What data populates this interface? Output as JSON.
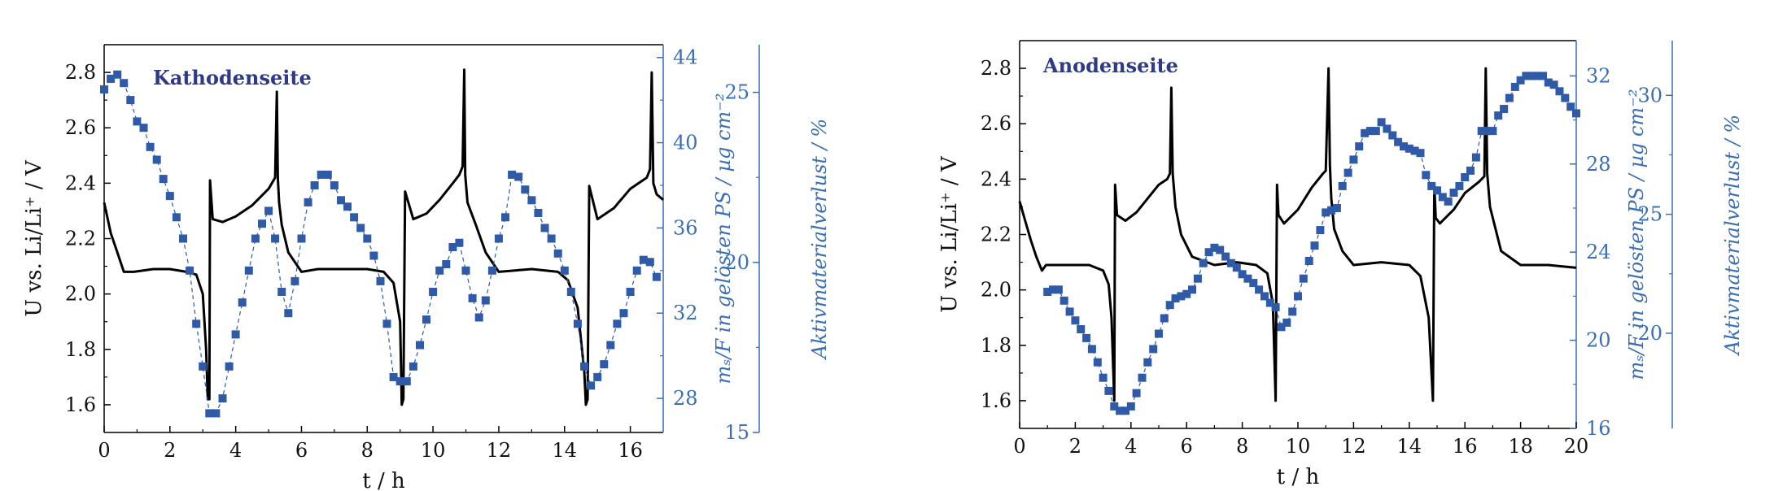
{
  "chart_data": [
    {
      "type": "line",
      "title": "Kathodenseite",
      "xlabel": "t / h",
      "ylabel": "U vs. Li/Li⁺ / V",
      "y2label": "mₛ/F in gelösten PS  / µg cm⁻²",
      "y3label": "Aktivmaterialverlust  / %",
      "xlim": [
        0,
        17
      ],
      "ylim": [
        1.5,
        2.9
      ],
      "y2lim": [
        26.4,
        44.6
      ],
      "y3lim": [
        15,
        26.4
      ],
      "x_ticks": [
        0,
        2,
        4,
        6,
        8,
        10,
        12,
        14,
        16
      ],
      "y_ticks": [
        1.6,
        1.8,
        2.0,
        2.2,
        2.4,
        2.6,
        2.8
      ],
      "y2_ticks": [
        28,
        32,
        36,
        40,
        44
      ],
      "y3_ticks": [
        15,
        20,
        25
      ],
      "colors": {
        "voltage": "#000000",
        "mass": "#2e5aa8",
        "axis_blue": "#3a6fb5"
      },
      "series": [
        {
          "axis": "left",
          "x": [
            0,
            0.2,
            0.4,
            0.6,
            0.9,
            1.5,
            2,
            2.5,
            2.8,
            3.0,
            3.1,
            3.15,
            3.2,
            3.22,
            3.3,
            3.6,
            4,
            4.5,
            5.0,
            5.1,
            5.2,
            5.25,
            5.28,
            5.32,
            5.4,
            5.6,
            6,
            6.5,
            7,
            8,
            8.5,
            8.8,
            9.0,
            9.05,
            9.1,
            9.15,
            9.4,
            9.8,
            10.2,
            10.6,
            10.8,
            10.9,
            10.95,
            10.98,
            11.05,
            11.3,
            11.6,
            12,
            13,
            13.8,
            14.1,
            14.4,
            14.6,
            14.65,
            14.7,
            14.75,
            15,
            15.5,
            16,
            16.5,
            16.6,
            16.65,
            16.7,
            16.8,
            17
          ],
          "y": [
            2.33,
            2.22,
            2.15,
            2.08,
            2.08,
            2.09,
            2.09,
            2.08,
            2.07,
            2.0,
            1.8,
            1.62,
            1.62,
            2.41,
            2.27,
            2.26,
            2.28,
            2.32,
            2.38,
            2.4,
            2.42,
            2.73,
            2.42,
            2.33,
            2.25,
            2.15,
            2.08,
            2.09,
            2.09,
            2.09,
            2.08,
            2.04,
            1.9,
            1.6,
            1.62,
            2.37,
            2.27,
            2.29,
            2.34,
            2.4,
            2.43,
            2.46,
            2.81,
            2.43,
            2.33,
            2.25,
            2.15,
            2.08,
            2.09,
            2.08,
            2.05,
            1.95,
            1.72,
            1.6,
            1.62,
            2.39,
            2.27,
            2.31,
            2.38,
            2.42,
            2.45,
            2.8,
            2.4,
            2.36,
            2.34
          ]
        },
        {
          "axis": "right",
          "x": [
            0.0,
            0.2,
            0.4,
            0.6,
            0.8,
            1.0,
            1.2,
            1.4,
            1.6,
            1.8,
            2.0,
            2.2,
            2.4,
            2.6,
            2.8,
            3.0,
            3.2,
            3.4,
            3.6,
            3.8,
            4.0,
            4.2,
            4.4,
            4.6,
            4.8,
            5.0,
            5.2,
            5.4,
            5.6,
            5.8,
            6.0,
            6.2,
            6.4,
            6.6,
            6.8,
            7.0,
            7.2,
            7.4,
            7.6,
            7.8,
            8.0,
            8.2,
            8.4,
            8.6,
            8.8,
            9.0,
            9.2,
            9.4,
            9.6,
            9.8,
            10.0,
            10.2,
            10.4,
            10.6,
            10.8,
            11.0,
            11.2,
            11.4,
            11.6,
            11.8,
            12.0,
            12.2,
            12.4,
            12.6,
            12.8,
            13.0,
            13.2,
            13.4,
            13.6,
            13.8,
            14.0,
            14.2,
            14.4,
            14.6,
            14.8,
            15.0,
            15.2,
            15.4,
            15.6,
            15.8,
            16.0,
            16.2,
            16.4,
            16.6,
            16.8
          ],
          "y": [
            42.5,
            43.0,
            43.2,
            42.8,
            42.0,
            41.0,
            40.7,
            39.8,
            39.2,
            38.3,
            37.5,
            36.5,
            35.5,
            34.0,
            31.5,
            29.5,
            27.3,
            27.3,
            28.0,
            29.5,
            31.0,
            32.5,
            34.0,
            35.5,
            36.2,
            36.8,
            35.5,
            33.0,
            32.0,
            33.5,
            35.5,
            37.2,
            38.0,
            38.5,
            38.5,
            38.0,
            37.3,
            37.0,
            36.5,
            36.0,
            35.5,
            34.7,
            33.5,
            31.5,
            29.0,
            28.8,
            28.8,
            29.5,
            30.5,
            31.7,
            33.0,
            34.0,
            34.3,
            35.1,
            35.3,
            34.0,
            32.7,
            31.8,
            32.6,
            34.0,
            35.5,
            36.5,
            38.5,
            38.4,
            37.8,
            37.3,
            36.7,
            36.0,
            35.5,
            34.8,
            34.0,
            33.0,
            31.5,
            29.5,
            28.6,
            29.0,
            29.6,
            30.5,
            31.5,
            32.0,
            33.0,
            34.0,
            34.5,
            34.4,
            33.7
          ]
        }
      ]
    },
    {
      "type": "line",
      "title": "Anodenseite",
      "xlabel": "t / h",
      "ylabel": "U vs. Li/Li⁺ / V",
      "y2label": "mₛ/F in gelösten PS  / µg cm⁻²",
      "y3label": "Aktivmaterialverlust  / %",
      "xlim": [
        0,
        20
      ],
      "ylim": [
        1.5,
        2.9
      ],
      "y2lim": [
        16,
        33.6
      ],
      "y3lim": [
        16,
        32.3
      ],
      "x_ticks": [
        0,
        2,
        4,
        6,
        8,
        10,
        12,
        14,
        16,
        18,
        20
      ],
      "y_ticks": [
        1.6,
        1.8,
        2.0,
        2.2,
        2.4,
        2.6,
        2.8
      ],
      "y2_ticks": [
        16,
        20,
        24,
        28,
        32
      ],
      "y3_ticks": [
        20,
        25,
        30
      ],
      "colors": {
        "voltage": "#000000",
        "mass": "#2e5aa8",
        "axis_blue": "#3a6fb5"
      },
      "series": [
        {
          "axis": "left",
          "x": [
            0,
            0.2,
            0.4,
            0.6,
            0.8,
            0.95,
            1.2,
            2,
            2.5,
            3.0,
            3.2,
            3.3,
            3.4,
            3.43,
            3.5,
            3.8,
            4.2,
            4.6,
            5.0,
            5.3,
            5.4,
            5.45,
            5.5,
            5.6,
            5.8,
            6.2,
            7,
            7.8,
            8.5,
            8.9,
            9.1,
            9.2,
            9.25,
            9.3,
            9.5,
            10,
            10.5,
            10.9,
            11.0,
            11.1,
            11.15,
            11.2,
            11.3,
            11.6,
            12,
            13,
            14,
            14.4,
            14.7,
            14.85,
            14.9,
            14.95,
            15.1,
            15.6,
            16,
            16.5,
            16.7,
            16.75,
            16.8,
            16.9,
            17.3,
            18,
            19,
            20
          ],
          "y": [
            2.32,
            2.25,
            2.18,
            2.12,
            2.07,
            2.09,
            2.09,
            2.09,
            2.09,
            2.07,
            2.02,
            1.9,
            1.6,
            2.38,
            2.27,
            2.25,
            2.28,
            2.33,
            2.38,
            2.4,
            2.42,
            2.73,
            2.42,
            2.3,
            2.2,
            2.12,
            2.09,
            2.1,
            2.09,
            2.06,
            1.95,
            1.6,
            2.38,
            2.27,
            2.24,
            2.29,
            2.37,
            2.42,
            2.43,
            2.8,
            2.45,
            2.33,
            2.22,
            2.14,
            2.09,
            2.1,
            2.09,
            2.05,
            1.9,
            1.6,
            2.38,
            2.26,
            2.24,
            2.29,
            2.35,
            2.39,
            2.41,
            2.8,
            2.42,
            2.3,
            2.14,
            2.09,
            2.09,
            2.08
          ]
        },
        {
          "axis": "right",
          "x": [
            1.0,
            1.2,
            1.4,
            1.6,
            1.8,
            2.0,
            2.2,
            2.4,
            2.6,
            2.8,
            3.0,
            3.2,
            3.4,
            3.6,
            3.8,
            4.0,
            4.2,
            4.4,
            4.6,
            4.8,
            5.0,
            5.2,
            5.4,
            5.6,
            5.8,
            6.0,
            6.2,
            6.4,
            6.6,
            6.8,
            7.0,
            7.2,
            7.4,
            7.6,
            7.8,
            8.0,
            8.2,
            8.4,
            8.6,
            8.8,
            9.0,
            9.2,
            9.4,
            9.6,
            9.8,
            10.0,
            10.2,
            10.4,
            10.6,
            10.8,
            11.0,
            11.2,
            11.4,
            11.6,
            11.8,
            12.0,
            12.2,
            12.4,
            12.6,
            12.8,
            13.0,
            13.2,
            13.4,
            13.6,
            13.8,
            14.0,
            14.2,
            14.4,
            14.6,
            14.8,
            15.0,
            15.2,
            15.4,
            15.6,
            15.8,
            16.0,
            16.2,
            16.4,
            16.6,
            16.8,
            17.0,
            17.2,
            17.4,
            17.6,
            17.8,
            18.0,
            18.2,
            18.4,
            18.6,
            18.8,
            19.0,
            19.2,
            19.4,
            19.6,
            19.8,
            20.0
          ],
          "y": [
            22.2,
            22.3,
            22.3,
            21.8,
            21.3,
            20.9,
            20.5,
            20.1,
            19.6,
            19.0,
            18.3,
            17.7,
            17.0,
            16.8,
            16.8,
            17.0,
            17.6,
            18.3,
            19.0,
            19.6,
            20.3,
            21.0,
            21.6,
            21.9,
            22.0,
            22.1,
            22.3,
            22.8,
            23.5,
            24.0,
            24.2,
            24.1,
            23.8,
            23.5,
            23.3,
            23.0,
            22.8,
            22.6,
            22.3,
            22.0,
            21.7,
            21.5,
            20.6,
            20.8,
            21.3,
            22.0,
            22.8,
            23.6,
            24.3,
            25.0,
            25.8,
            25.9,
            26.0,
            27.0,
            27.6,
            28.2,
            28.8,
            29.4,
            29.5,
            29.5,
            29.9,
            29.6,
            29.3,
            29.0,
            28.8,
            28.7,
            28.6,
            28.5,
            27.5,
            27.0,
            26.8,
            26.5,
            26.3,
            26.7,
            27.0,
            27.4,
            27.7,
            28.3,
            29.5,
            29.5,
            29.5,
            30.2,
            30.5,
            31.0,
            31.5,
            31.8,
            32.0,
            32.0,
            32.0,
            32.0,
            31.7,
            31.6,
            31.3,
            31.0,
            30.6,
            30.3
          ]
        }
      ]
    }
  ]
}
